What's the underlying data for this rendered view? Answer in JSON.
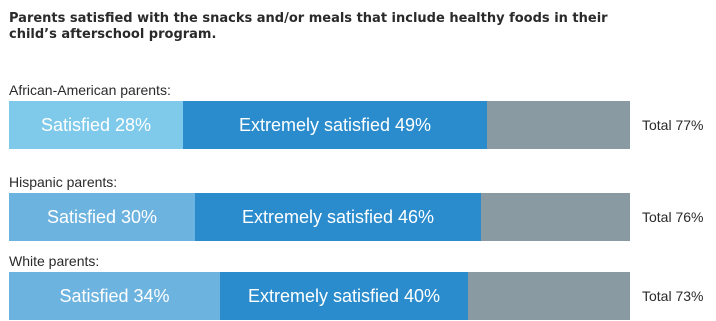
{
  "chart_data": {
    "type": "bar",
    "stacked": true,
    "orientation": "horizontal",
    "title": "Parents satisfied with the snacks and/or meals that include healthy foods in their child’s afterschool program.",
    "categories": [
      "African-American parents:",
      "Hispanic parents:",
      "White parents:"
    ],
    "series": [
      {
        "name": "Satisfied",
        "values": [
          28,
          30,
          34
        ]
      },
      {
        "name": "Extremely satisfied",
        "values": [
          49,
          46,
          40
        ]
      }
    ],
    "segment_labels": [
      [
        "Satisfied 28%",
        "Extremely satisfied 49%"
      ],
      [
        "Satisfied 30%",
        "Extremely satisfied 46%"
      ],
      [
        "Satisfied 34%",
        "Extremely satisfied 40%"
      ]
    ],
    "totals": [
      77,
      76,
      73
    ],
    "total_labels": [
      "Total 77%",
      "Total 76%",
      "Total 73%"
    ],
    "xlim": [
      0,
      100
    ],
    "grid": false,
    "colors": {
      "satisfied": "#7fcaea",
      "extremely_satisfied": "#2a8ccd",
      "remainder": "#8a9aa2"
    }
  }
}
